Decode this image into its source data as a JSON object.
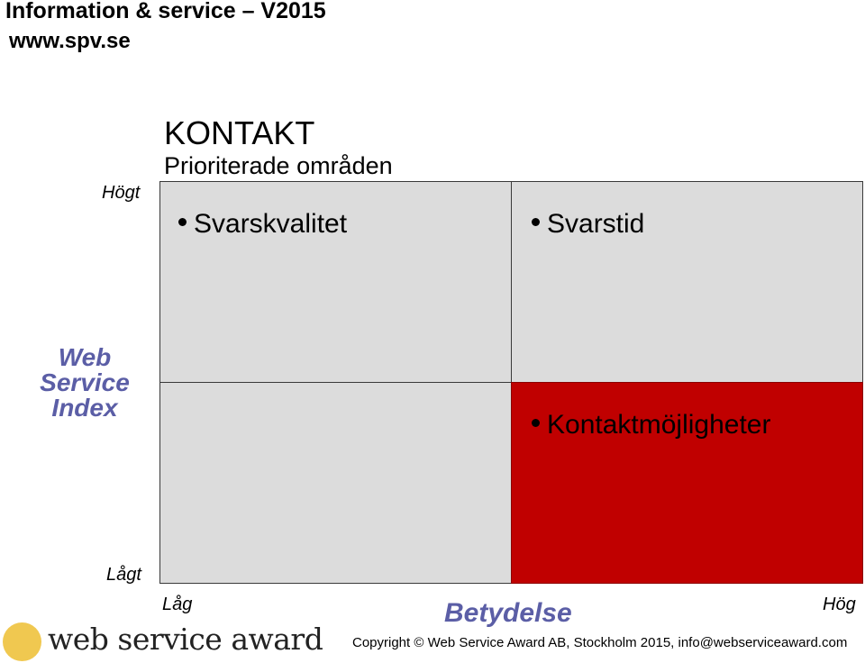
{
  "header": {
    "title": "Information & service – V2015",
    "url": "www.spv.se"
  },
  "diagram": {
    "title": "KONTAKT",
    "subtitle": "Prioriterade områden",
    "y_axis": {
      "title": "Web Service Index",
      "high_label": "Högt",
      "low_label": "Lågt"
    },
    "x_axis": {
      "title": "Betydelse",
      "low_label": "Låg",
      "high_label": "Hög"
    },
    "quadrants": {
      "top_left": {
        "items": [
          "Svarskvalitet"
        ],
        "color": "#dcdcdc"
      },
      "top_right": {
        "items": [
          "Svarstid"
        ],
        "color": "#dcdcdc"
      },
      "bottom_left": {
        "items": [],
        "color": "#dcdcdc"
      },
      "bottom_right": {
        "items": [
          "Kontaktmöjligheter"
        ],
        "color": "#c00000"
      }
    }
  },
  "footer": {
    "logo_text": "web service award",
    "copyright": "Copyright © Web Service Award AB, Stockholm 2015, info@webserviceaward.com"
  },
  "colors": {
    "accent_text": "#5b5ea6",
    "highlight": "#c00000",
    "logo_circle": "#f0c850"
  }
}
